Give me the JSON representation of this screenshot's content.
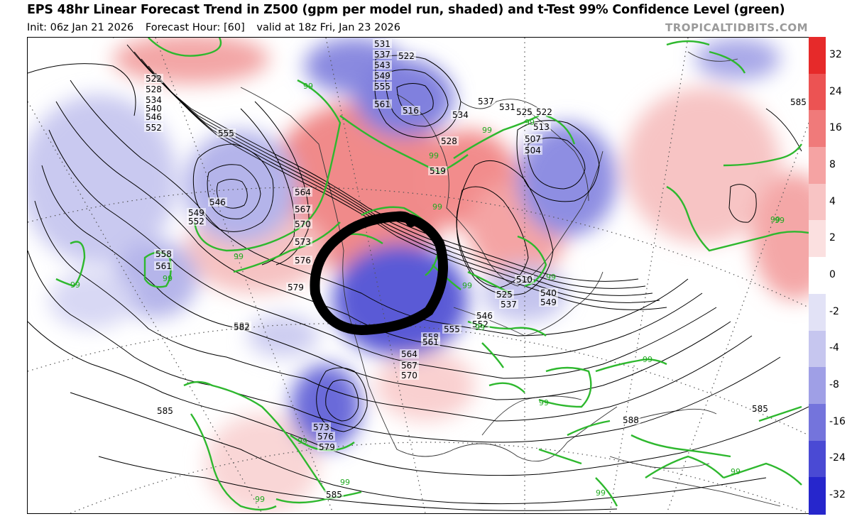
{
  "header": {
    "title": "EPS 48hr Linear Forecast Trend in Z500 (gpm per model run, shaded) and t-Test 99% Confidence Level (green)",
    "init": "Init: 06z Jan 21 2026",
    "forecast_hour": "Forecast Hour: [60]",
    "valid": "valid at 18z Fri, Jan 23 2026",
    "watermark": "TROPICALTIDBITS.COM"
  },
  "colorbar": {
    "labels": [
      "32",
      "24",
      "16",
      "8",
      "4",
      "2",
      "0",
      "-2",
      "-4",
      "-8",
      "-16",
      "-24",
      "-32"
    ],
    "colors": [
      "#e62a2a",
      "#ec5353",
      "#f07a7a",
      "#f5a3a3",
      "#f8c4c4",
      "#fbe0e0",
      "#ffffff",
      "#e2e2f6",
      "#c6c6ef",
      "#9f9fe6",
      "#7474dc",
      "#4a4ad4",
      "#2626cc"
    ]
  },
  "map": {
    "contour_labels": [
      "531",
      "537",
      "543",
      "549",
      "555",
      "561",
      "522",
      "528",
      "534",
      "540",
      "546",
      "552",
      "555",
      "546",
      "549",
      "552",
      "558",
      "561",
      "564",
      "567",
      "570",
      "573",
      "576",
      "579",
      "582",
      "585",
      "522",
      "516",
      "534",
      "537",
      "531",
      "525",
      "522",
      "513",
      "507",
      "504",
      "528",
      "519",
      "510",
      "525",
      "537",
      "540",
      "549",
      "546",
      "552",
      "555",
      "558",
      "561",
      "564",
      "567",
      "570",
      "573",
      "576",
      "579",
      "582",
      "585",
      "588",
      "585",
      "585"
    ],
    "confidence_labels": [
      "99",
      "99",
      "99",
      "99",
      "99",
      "99",
      "99",
      "99",
      "99",
      "99",
      "99",
      "99",
      "99",
      "99",
      "99",
      "99",
      "99",
      "99",
      "99",
      "99"
    ],
    "annotation": "hand-drawn black circle over the western/central United States"
  }
}
